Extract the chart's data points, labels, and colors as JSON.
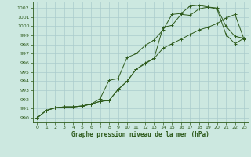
{
  "title": "Graphe pression niveau de la mer (hPa)",
  "bg_color": "#cce8e0",
  "grid_color": "#aacccc",
  "line_color": "#2d5a1b",
  "xlim": [
    -0.5,
    23.5
  ],
  "ylim": [
    989.5,
    1002.7
  ],
  "yticks": [
    990,
    991,
    992,
    993,
    994,
    995,
    996,
    997,
    998,
    999,
    1000,
    1001,
    1002
  ],
  "xticks": [
    0,
    1,
    2,
    3,
    4,
    5,
    6,
    7,
    8,
    9,
    10,
    11,
    12,
    13,
    14,
    15,
    16,
    17,
    18,
    19,
    20,
    21,
    22,
    23
  ],
  "line1_x": [
    0,
    1,
    2,
    3,
    4,
    5,
    6,
    7,
    8,
    9,
    10,
    11,
    12,
    13,
    14,
    15,
    16,
    17,
    18,
    19,
    20,
    21,
    22,
    23
  ],
  "line1_y": [
    990.0,
    990.8,
    991.1,
    991.2,
    991.2,
    991.3,
    991.5,
    991.8,
    991.9,
    993.1,
    994.0,
    995.3,
    996.0,
    996.5,
    999.9,
    1000.1,
    1001.3,
    1001.2,
    1001.9,
    1002.1,
    1002.0,
    1000.0,
    998.9,
    998.7
  ],
  "line2_x": [
    0,
    1,
    2,
    3,
    4,
    5,
    6,
    7,
    8,
    9,
    10,
    11,
    12,
    13,
    14,
    15,
    16,
    17,
    18,
    19,
    20,
    21,
    22,
    23
  ],
  "line2_y": [
    990.0,
    990.8,
    991.1,
    991.2,
    991.2,
    991.3,
    991.5,
    992.1,
    994.1,
    994.3,
    996.6,
    997.0,
    997.9,
    998.5,
    999.6,
    1001.3,
    1001.4,
    1002.2,
    1002.3,
    1002.1,
    1001.9,
    999.1,
    998.1,
    998.7
  ],
  "line3_x": [
    0,
    1,
    2,
    3,
    4,
    5,
    6,
    7,
    8,
    9,
    10,
    11,
    12,
    13,
    14,
    15,
    16,
    17,
    18,
    19,
    20,
    21,
    22,
    23
  ],
  "line3_y": [
    990.0,
    990.8,
    991.1,
    991.2,
    991.2,
    991.3,
    991.5,
    991.8,
    991.9,
    993.1,
    994.0,
    995.3,
    995.9,
    996.5,
    997.6,
    998.1,
    998.6,
    999.1,
    999.6,
    999.9,
    1000.3,
    1000.9,
    1001.3,
    998.6
  ]
}
